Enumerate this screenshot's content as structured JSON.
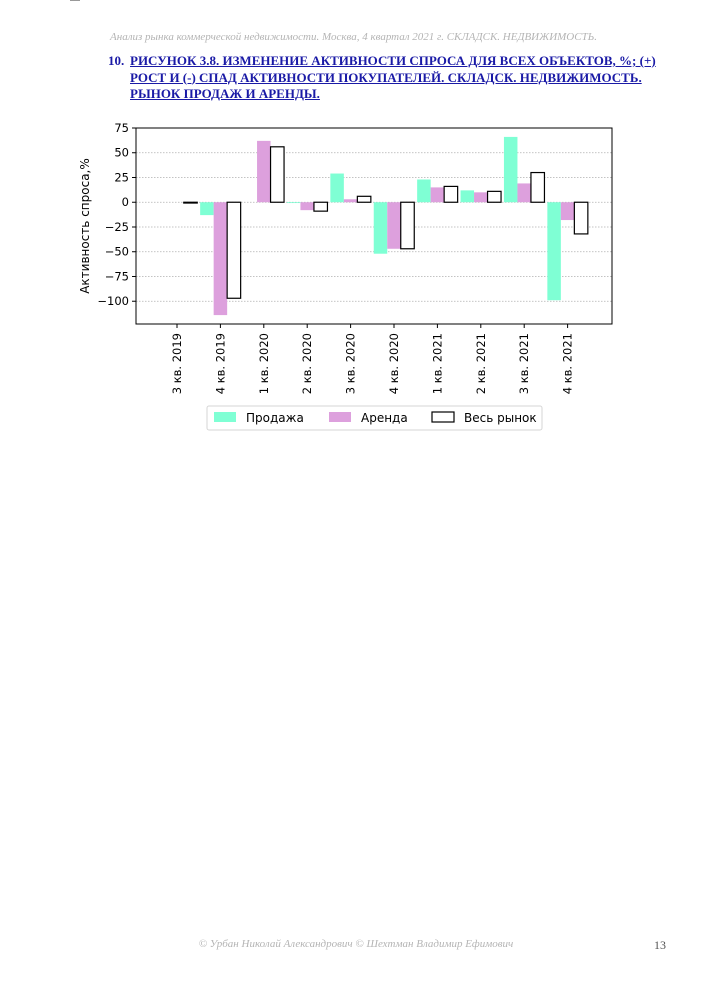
{
  "header": {
    "running_title": "Анализ рынка коммерческой недвижимости.  Москва,  4 квартал 2021 г.  СКЛАДСК. НЕДВИЖИМОСТЬ."
  },
  "figure": {
    "number": "10.",
    "title": "РИСУНОК 3.8. ИЗМЕНЕНИЕ АКТИВНОСТИ СПРОСА ДЛЯ ВСЕХ ОБЪЕКТОВ, %; (+) РОСТ И (-) СПАД АКТИВНОСТИ ПОКУПАТЕЛЕЙ. СКЛАДСК. НЕДВИЖИМОСТЬ. РЫНОК ПРОДАЖ И АРЕНДЫ."
  },
  "chart_data": {
    "type": "bar",
    "title": "",
    "xlabel": "",
    "ylabel": "Активность спроса,%",
    "ylim": [
      -123,
      75
    ],
    "yticks": [
      75,
      50,
      25,
      0,
      -25,
      -50,
      -75,
      -100
    ],
    "ytick_labels": [
      "75",
      "50",
      "25",
      "0",
      "−25",
      "−50",
      "−75",
      "−100"
    ],
    "grid": "horizontal dotted",
    "legend_position": "bottom-center",
    "categories": [
      "3 кв. 2019",
      "4 кв. 2019",
      "1 кв. 2020",
      "2 кв. 2020",
      "3 кв. 2020",
      "4 кв. 2020",
      "1 кв. 2021",
      "2 кв. 2021",
      "3 кв. 2021",
      "4 кв. 2021"
    ],
    "series": [
      {
        "name": "Продажа",
        "color": "#7fffd4",
        "values": [
          null,
          -13,
          null,
          0,
          29,
          -52,
          23,
          12,
          66,
          -99
        ]
      },
      {
        "name": "Аренда",
        "color": "#dda0dd",
        "values": [
          null,
          -114,
          62,
          -8,
          3,
          -47,
          15,
          10,
          19,
          -18
        ]
      },
      {
        "name": "Весь рынок",
        "color": "#ffffff",
        "stroke": "#000000",
        "values": [
          -0.5,
          -97,
          56,
          -9,
          6,
          -47,
          16,
          11,
          30,
          -32
        ]
      }
    ]
  },
  "footer": {
    "authors": "© Урбан Николай Александрович  © Шехтман Владимир Ефимович",
    "page_number": "13"
  }
}
